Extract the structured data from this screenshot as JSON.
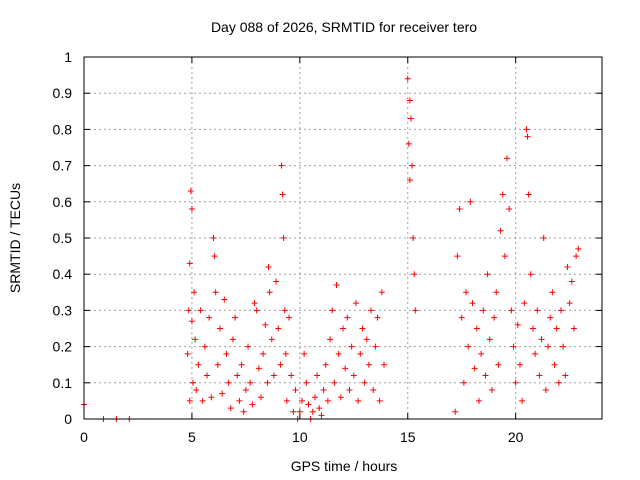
{
  "chart_data": {
    "type": "scatter",
    "title": "Day 088 of 2026, SRMTID for receiver tero",
    "xlabel": "GPS time / hours",
    "ylabel": "SRMTID / TECUs",
    "xlim": [
      0,
      24
    ],
    "ylim": [
      0,
      1
    ],
    "xticks": [
      0,
      5,
      10,
      15,
      20
    ],
    "yticks": [
      0,
      0.1,
      0.2,
      0.3,
      0.4,
      0.5,
      0.6,
      0.7,
      0.8,
      0.9,
      1
    ],
    "grid": true,
    "marker": "+",
    "color": "#ff0000",
    "series": [
      {
        "name": "SRMTID",
        "x": [
          0.0,
          0.9,
          1.5,
          2.1,
          4.8,
          4.85,
          4.9,
          4.9,
          4.95,
          5.0,
          5.0,
          5.05,
          5.1,
          5.15,
          5.2,
          5.3,
          5.4,
          5.5,
          5.6,
          5.7,
          5.8,
          5.9,
          6.0,
          6.05,
          6.1,
          6.2,
          6.3,
          6.4,
          6.5,
          6.6,
          6.7,
          6.8,
          6.9,
          7.0,
          7.1,
          7.2,
          7.3,
          7.4,
          7.5,
          7.6,
          7.7,
          7.8,
          7.9,
          8.0,
          8.1,
          8.2,
          8.3,
          8.4,
          8.5,
          8.55,
          8.6,
          8.7,
          8.8,
          8.9,
          9.0,
          9.1,
          9.15,
          9.2,
          9.25,
          9.3,
          9.35,
          9.4,
          9.5,
          9.6,
          9.7,
          9.8,
          9.9,
          10.0,
          10.1,
          10.2,
          10.3,
          10.4,
          10.5,
          10.6,
          10.7,
          10.8,
          10.9,
          11.0,
          11.1,
          11.2,
          11.3,
          11.4,
          11.5,
          11.6,
          11.7,
          11.8,
          11.9,
          12.0,
          12.1,
          12.2,
          12.3,
          12.4,
          12.5,
          12.6,
          12.7,
          12.8,
          12.9,
          13.0,
          13.1,
          13.2,
          13.3,
          13.4,
          13.5,
          13.6,
          13.7,
          13.8,
          13.9,
          15.0,
          15.05,
          15.1,
          15.1,
          15.15,
          15.2,
          15.25,
          15.3,
          15.35,
          17.2,
          17.3,
          17.4,
          17.5,
          17.6,
          17.7,
          17.8,
          17.9,
          18.0,
          18.1,
          18.2,
          18.3,
          18.4,
          18.5,
          18.6,
          18.7,
          18.8,
          18.9,
          19.0,
          19.1,
          19.2,
          19.3,
          19.4,
          19.5,
          19.6,
          19.7,
          19.8,
          19.9,
          20.0,
          20.1,
          20.2,
          20.3,
          20.4,
          20.5,
          20.55,
          20.6,
          20.7,
          20.8,
          20.9,
          21.0,
          21.1,
          21.2,
          21.3,
          21.4,
          21.5,
          21.6,
          21.7,
          21.8,
          21.9,
          22.0,
          22.1,
          22.2,
          22.3,
          22.4,
          22.5,
          22.6,
          22.7,
          22.8,
          22.9
        ],
        "y": [
          0.04,
          0.0,
          0.0,
          0.0,
          0.18,
          0.3,
          0.05,
          0.43,
          0.63,
          0.58,
          0.27,
          0.1,
          0.35,
          0.22,
          0.08,
          0.15,
          0.3,
          0.05,
          0.2,
          0.12,
          0.28,
          0.06,
          0.5,
          0.45,
          0.35,
          0.15,
          0.25,
          0.07,
          0.33,
          0.18,
          0.1,
          0.03,
          0.22,
          0.28,
          0.12,
          0.05,
          0.15,
          0.02,
          0.08,
          0.2,
          0.1,
          0.04,
          0.32,
          0.3,
          0.14,
          0.06,
          0.18,
          0.26,
          0.1,
          0.42,
          0.35,
          0.22,
          0.12,
          0.38,
          0.25,
          0.15,
          0.7,
          0.62,
          0.5,
          0.3,
          0.18,
          0.05,
          0.28,
          0.12,
          0.02,
          0.08,
          0.0,
          0.02,
          0.05,
          0.18,
          0.1,
          0.04,
          0.0,
          0.02,
          0.06,
          0.12,
          0.03,
          0.01,
          0.08,
          0.15,
          0.05,
          0.22,
          0.3,
          0.1,
          0.37,
          0.18,
          0.06,
          0.25,
          0.14,
          0.28,
          0.08,
          0.2,
          0.12,
          0.32,
          0.05,
          0.18,
          0.25,
          0.1,
          0.22,
          0.15,
          0.3,
          0.08,
          0.2,
          0.28,
          0.05,
          0.35,
          0.15,
          0.94,
          0.76,
          0.66,
          0.88,
          0.83,
          0.7,
          0.5,
          0.4,
          0.3,
          0.02,
          0.45,
          0.58,
          0.28,
          0.1,
          0.35,
          0.2,
          0.6,
          0.32,
          0.14,
          0.25,
          0.05,
          0.18,
          0.3,
          0.12,
          0.4,
          0.22,
          0.08,
          0.28,
          0.35,
          0.15,
          0.52,
          0.62,
          0.45,
          0.72,
          0.58,
          0.3,
          0.2,
          0.1,
          0.26,
          0.15,
          0.05,
          0.32,
          0.8,
          0.78,
          0.62,
          0.4,
          0.25,
          0.18,
          0.3,
          0.12,
          0.22,
          0.5,
          0.08,
          0.2,
          0.28,
          0.35,
          0.15,
          0.25,
          0.1,
          0.3,
          0.2,
          0.12,
          0.42,
          0.32,
          0.38,
          0.25,
          0.45,
          0.47
        ]
      }
    ]
  }
}
